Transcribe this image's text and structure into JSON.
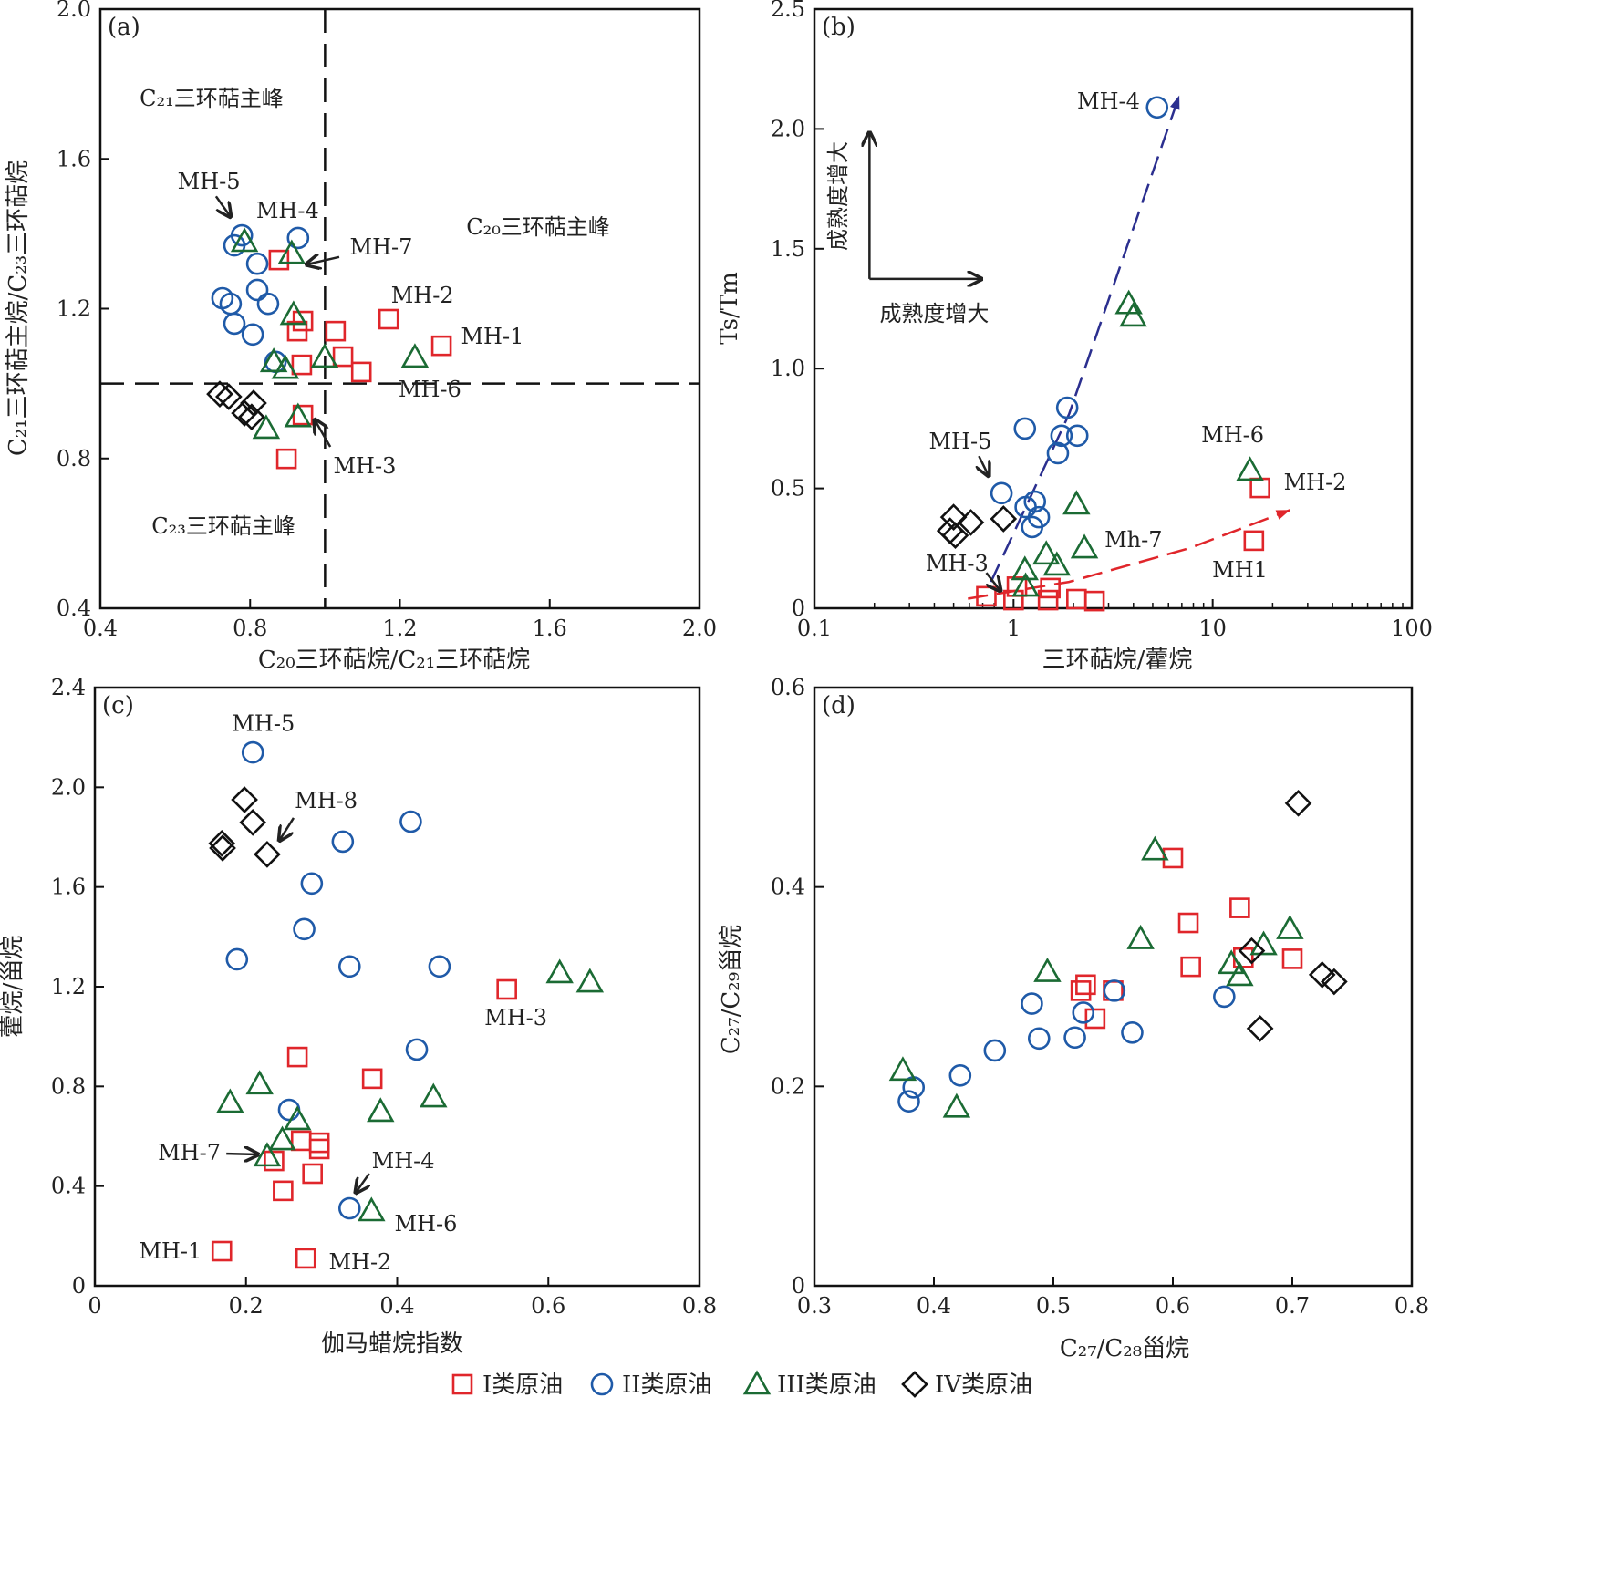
{
  "legend": [
    {
      "key": "I",
      "label": "I类原油",
      "marker": "square",
      "color": "#e0262b"
    },
    {
      "key": "II",
      "label": "II类原油",
      "marker": "circle",
      "color": "#1f5aa8"
    },
    {
      "key": "III",
      "label": "III类原油",
      "marker": "triangle",
      "color": "#1b6b34"
    },
    {
      "key": "IV",
      "label": "IV类原油",
      "marker": "diamond",
      "color": "#111111"
    }
  ],
  "chart_data": [
    {
      "type": "scatter",
      "panel": "(a)",
      "xlabel": "C₂₀三环萜烷/C₂₁三环萜烷",
      "ylabel": "C₂₁三环萜主烷/C₂₃三环萜烷",
      "xlim": [
        0.4,
        2.0
      ],
      "ylim": [
        0.4,
        2.0
      ],
      "xscale": "linear",
      "xticks": [
        "0.4",
        "0.8",
        "1.2",
        "1.6",
        "2.0"
      ],
      "yticks": [
        "0.4",
        "0.8",
        "1.2",
        "1.6",
        "2.0"
      ],
      "refline_x": 1.0,
      "refline_y": 1.0,
      "series": [
        {
          "key": "I",
          "points": [
            [
              0.877,
              1.33
            ],
            [
              0.941,
              1.167
            ],
            [
              0.926,
              1.14
            ],
            [
              0.938,
              1.05
            ],
            [
              1.028,
              1.14
            ],
            [
              1.048,
              1.072
            ],
            [
              1.097,
              1.031
            ],
            [
              1.17,
              1.172
            ],
            [
              1.311,
              1.101
            ],
            [
              0.941,
              0.916
            ],
            [
              0.897,
              0.799
            ]
          ]
        },
        {
          "key": "II",
          "points": [
            [
              0.778,
              1.396
            ],
            [
              0.758,
              1.369
            ],
            [
              0.928,
              1.389
            ],
            [
              0.819,
              1.32
            ],
            [
              0.726,
              1.228
            ],
            [
              0.748,
              1.213
            ],
            [
              0.819,
              1.25
            ],
            [
              0.848,
              1.213
            ],
            [
              0.758,
              1.16
            ],
            [
              0.807,
              1.131
            ],
            [
              0.868,
              1.058
            ]
          ]
        },
        {
          "key": "III",
          "points": [
            [
              0.785,
              1.379
            ],
            [
              0.911,
              1.347
            ],
            [
              0.916,
              1.184
            ],
            [
              0.863,
              1.058
            ],
            [
              0.894,
              1.04
            ],
            [
              0.999,
              1.07
            ],
            [
              1.24,
              1.07
            ],
            [
              0.843,
              0.88
            ],
            [
              0.928,
              0.911
            ]
          ]
        },
        {
          "key": "IV",
          "points": [
            [
              0.719,
              0.972
            ],
            [
              0.743,
              0.965
            ],
            [
              0.809,
              0.948
            ],
            [
              0.785,
              0.921
            ],
            [
              0.804,
              0.911
            ]
          ]
        }
      ],
      "annotations": [
        {
          "text": "C₂₁三环萜主峰",
          "at": [
            0.697,
            1.764
          ]
        },
        {
          "text": "C₂₀三环萜主峰",
          "at": [
            1.569,
            1.42
          ]
        },
        {
          "text": "C₂₃三环萜主峰",
          "at": [
            0.729,
            0.622
          ]
        },
        {
          "text": "MH-5",
          "at": [
            0.69,
            1.542
          ]
        },
        {
          "text": "MH-4",
          "at": [
            0.9,
            1.464
          ]
        },
        {
          "text": "MH-7",
          "at": [
            1.15,
            1.367
          ]
        },
        {
          "text": "MH-2",
          "at": [
            1.26,
            1.238
          ]
        },
        {
          "text": "MH-1",
          "at": [
            1.447,
            1.128
          ]
        },
        {
          "text": "MH-6",
          "at": [
            1.28,
            0.987
          ]
        },
        {
          "text": "MH-3",
          "at": [
            1.106,
            0.782
          ]
        }
      ],
      "arrows": [
        [
          [
            0.709,
            1.5
          ],
          [
            0.748,
            1.445
          ]
        ],
        [
          [
            1.038,
            1.338
          ],
          [
            0.95,
            1.318
          ]
        ],
        [
          [
            1.014,
            0.831
          ],
          [
            0.972,
            0.904
          ]
        ]
      ]
    },
    {
      "type": "scatter",
      "panel": "(b)",
      "xlabel": "三环萜烷/藿烷",
      "ylabel": "Ts/Tm",
      "xlim": [
        0.1,
        100
      ],
      "ylim": [
        0,
        2.5
      ],
      "xscale": "log",
      "xticks": [
        "0.1",
        "1",
        "10",
        "100"
      ],
      "yticks": [
        "0",
        "0.5",
        "1.0",
        "1.5",
        "2.0",
        "2.5"
      ],
      "series": [
        {
          "key": "I",
          "points": [
            [
              17.3,
              0.502
            ],
            [
              16.1,
              0.282
            ],
            [
              0.73,
              0.05
            ],
            [
              1.04,
              0.09
            ],
            [
              1.53,
              0.084
            ],
            [
              1.0,
              0.034
            ],
            [
              1.49,
              0.034
            ],
            [
              2.07,
              0.038
            ],
            [
              2.55,
              0.03
            ]
          ]
        },
        {
          "key": "II",
          "points": [
            [
              5.26,
              2.09
            ],
            [
              1.86,
              0.837
            ],
            [
              1.14,
              0.75
            ],
            [
              1.74,
              0.72
            ],
            [
              2.09,
              0.72
            ],
            [
              1.67,
              0.647
            ],
            [
              0.87,
              0.48
            ],
            [
              1.28,
              0.445
            ],
            [
              1.15,
              0.422
            ],
            [
              1.34,
              0.38
            ],
            [
              1.24,
              0.339
            ]
          ]
        },
        {
          "key": "III",
          "points": [
            [
              3.79,
              1.27
            ],
            [
              3.99,
              1.218
            ],
            [
              15.4,
              0.575
            ],
            [
              2.07,
              0.434
            ],
            [
              2.27,
              0.251
            ],
            [
              1.46,
              0.225
            ],
            [
              1.65,
              0.179
            ],
            [
              1.14,
              0.16
            ],
            [
              1.15,
              0.091
            ]
          ]
        },
        {
          "key": "IV",
          "points": [
            [
              0.5,
              0.38
            ],
            [
              0.61,
              0.358
            ],
            [
              0.89,
              0.373
            ],
            [
              0.48,
              0.323
            ],
            [
              0.51,
              0.304
            ]
          ]
        }
      ],
      "trend_lines": [
        {
          "color": "#2b2f8f",
          "points": [
            [
              0.77,
              0.11
            ],
            [
              1.9,
              0.81
            ],
            [
              6.8,
              2.14
            ]
          ]
        },
        {
          "color": "#e0262b",
          "points": [
            [
              0.59,
              0.04
            ],
            [
              1.9,
              0.11
            ],
            [
              7.6,
              0.25
            ],
            [
              24.5,
              0.41
            ]
          ]
        }
      ],
      "annotations": [
        {
          "text": "MH-4",
          "at": [
            3.0,
            2.12
          ]
        },
        {
          "text": "MH-5",
          "at": [
            0.54,
            0.7
          ]
        },
        {
          "text": "MH-6",
          "at": [
            12.6,
            0.727
          ]
        },
        {
          "text": "MH-2",
          "at": [
            32.7,
            0.529
          ]
        },
        {
          "text": "Mh-7",
          "at": [
            4.0,
            0.289
          ]
        },
        {
          "text": "MH-3",
          "at": [
            0.52,
            0.19
          ]
        },
        {
          "text": "MH1",
          "at": [
            13.7,
            0.164
          ]
        },
        {
          "text": "成熟度增大",
          "at": [
            0.4,
            1.233
          ]
        },
        {
          "text": "成熟度增大",
          "at": [
            0.13,
            1.72
          ],
          "rotate": true
        }
      ],
      "arrows": [
        [
          [
            0.189,
            1.374
          ],
          [
            0.69,
            1.374
          ]
        ],
        [
          [
            0.189,
            1.374
          ],
          [
            0.189,
            1.986
          ]
        ],
        [
          [
            0.67,
            0.635
          ],
          [
            0.75,
            0.552
          ]
        ],
        [
          [
            0.73,
            0.148
          ],
          [
            0.86,
            0.072
          ]
        ]
      ]
    },
    {
      "type": "scatter",
      "panel": "(c)",
      "xlabel": "伽马蜡烷指数",
      "ylabel": "藿烷/甾烷",
      "xlim": [
        0,
        0.8
      ],
      "ylim": [
        0,
        2.4
      ],
      "xscale": "linear",
      "xticks": [
        "0",
        "0.2",
        "0.4",
        "0.6",
        "0.8"
      ],
      "yticks": [
        "0",
        "0.4",
        "0.8",
        "1.2",
        "1.6",
        "2.0",
        "2.4"
      ],
      "series": [
        {
          "key": "I",
          "points": [
            [
              0.545,
              1.189
            ],
            [
              0.268,
              0.918
            ],
            [
              0.367,
              0.831
            ],
            [
              0.273,
              0.582
            ],
            [
              0.297,
              0.574
            ],
            [
              0.297,
              0.549
            ],
            [
              0.237,
              0.501
            ],
            [
              0.288,
              0.45
            ],
            [
              0.249,
              0.381
            ],
            [
              0.168,
              0.139
            ],
            [
              0.279,
              0.11
            ]
          ]
        },
        {
          "key": "II",
          "points": [
            [
              0.209,
              2.14
            ],
            [
              0.418,
              1.862
            ],
            [
              0.328,
              1.782
            ],
            [
              0.287,
              1.614
            ],
            [
              0.277,
              1.431
            ],
            [
              0.188,
              1.31
            ],
            [
              0.337,
              1.281
            ],
            [
              0.456,
              1.281
            ],
            [
              0.426,
              0.948
            ],
            [
              0.257,
              0.706
            ],
            [
              0.337,
              0.311
            ]
          ]
        },
        {
          "key": "III",
          "points": [
            [
              0.615,
              1.255
            ],
            [
              0.655,
              1.218
            ],
            [
              0.179,
              0.735
            ],
            [
              0.218,
              0.809
            ],
            [
              0.378,
              0.699
            ],
            [
              0.448,
              0.757
            ],
            [
              0.268,
              0.666
            ],
            [
              0.248,
              0.585
            ],
            [
              0.228,
              0.52
            ],
            [
              0.366,
              0.3
            ]
          ]
        },
        {
          "key": "IV",
          "points": [
            [
              0.198,
              1.95
            ],
            [
              0.209,
              1.859
            ],
            [
              0.168,
              1.775
            ],
            [
              0.169,
              1.756
            ],
            [
              0.228,
              1.731
            ]
          ]
        }
      ],
      "annotations": [
        {
          "text": "MH-5",
          "at": [
            0.223,
            2.26
          ]
        },
        {
          "text": "MH-8",
          "at": [
            0.306,
            1.95
          ]
        },
        {
          "text": "MH-3",
          "at": [
            0.557,
            1.08
          ]
        },
        {
          "text": "MH-7",
          "at": [
            0.125,
            0.538
          ]
        },
        {
          "text": "MH-4",
          "at": [
            0.408,
            0.505
          ]
        },
        {
          "text": "MH-6",
          "at": [
            0.438,
            0.252
          ]
        },
        {
          "text": "MH-1",
          "at": [
            0.1,
            0.143
          ]
        },
        {
          "text": "MH-2",
          "at": [
            0.351,
            0.099
          ]
        }
      ],
      "arrows": [
        [
          [
            0.263,
            1.877
          ],
          [
            0.244,
            1.786
          ]
        ],
        [
          [
            0.174,
            0.53
          ],
          [
            0.216,
            0.527
          ]
        ],
        [
          [
            0.363,
            0.45
          ],
          [
            0.345,
            0.373
          ]
        ]
      ]
    },
    {
      "type": "scatter",
      "panel": "(d)",
      "xlabel": "C₂₇/C₂₈甾烷",
      "ylabel": "C₂₇/C₂₉甾烷",
      "xlim": [
        0.3,
        0.8
      ],
      "ylim": [
        0,
        0.6
      ],
      "xscale": "linear",
      "xticks": [
        "0.3",
        "0.4",
        "0.5",
        "0.6",
        "0.7",
        "0.8"
      ],
      "yticks": [
        "0",
        "0.2",
        "0.4",
        "0.6"
      ],
      "series": [
        {
          "key": "I",
          "points": [
            [
              0.6,
              0.429
            ],
            [
              0.613,
              0.364
            ],
            [
              0.615,
              0.32
            ],
            [
              0.656,
              0.379
            ],
            [
              0.659,
              0.329
            ],
            [
              0.7,
              0.328
            ],
            [
              0.523,
              0.296
            ],
            [
              0.527,
              0.302
            ],
            [
              0.535,
              0.268
            ],
            [
              0.55,
              0.296
            ]
          ]
        },
        {
          "key": "II",
          "points": [
            [
              0.379,
              0.185
            ],
            [
              0.383,
              0.199
            ],
            [
              0.422,
              0.211
            ],
            [
              0.451,
              0.236
            ],
            [
              0.482,
              0.283
            ],
            [
              0.488,
              0.248
            ],
            [
              0.518,
              0.249
            ],
            [
              0.525,
              0.274
            ],
            [
              0.551,
              0.296
            ],
            [
              0.566,
              0.254
            ],
            [
              0.643,
              0.29
            ]
          ]
        },
        {
          "key": "III",
          "points": [
            [
              0.374,
              0.216
            ],
            [
              0.419,
              0.179
            ],
            [
              0.495,
              0.315
            ],
            [
              0.573,
              0.348
            ],
            [
              0.585,
              0.437
            ],
            [
              0.649,
              0.323
            ],
            [
              0.656,
              0.311
            ],
            [
              0.676,
              0.342
            ],
            [
              0.698,
              0.358
            ]
          ]
        },
        {
          "key": "IV",
          "points": [
            [
              0.705,
              0.484
            ],
            [
              0.666,
              0.336
            ],
            [
              0.673,
              0.258
            ],
            [
              0.725,
              0.312
            ],
            [
              0.735,
              0.305
            ]
          ]
        }
      ],
      "annotations": [],
      "arrows": []
    }
  ]
}
